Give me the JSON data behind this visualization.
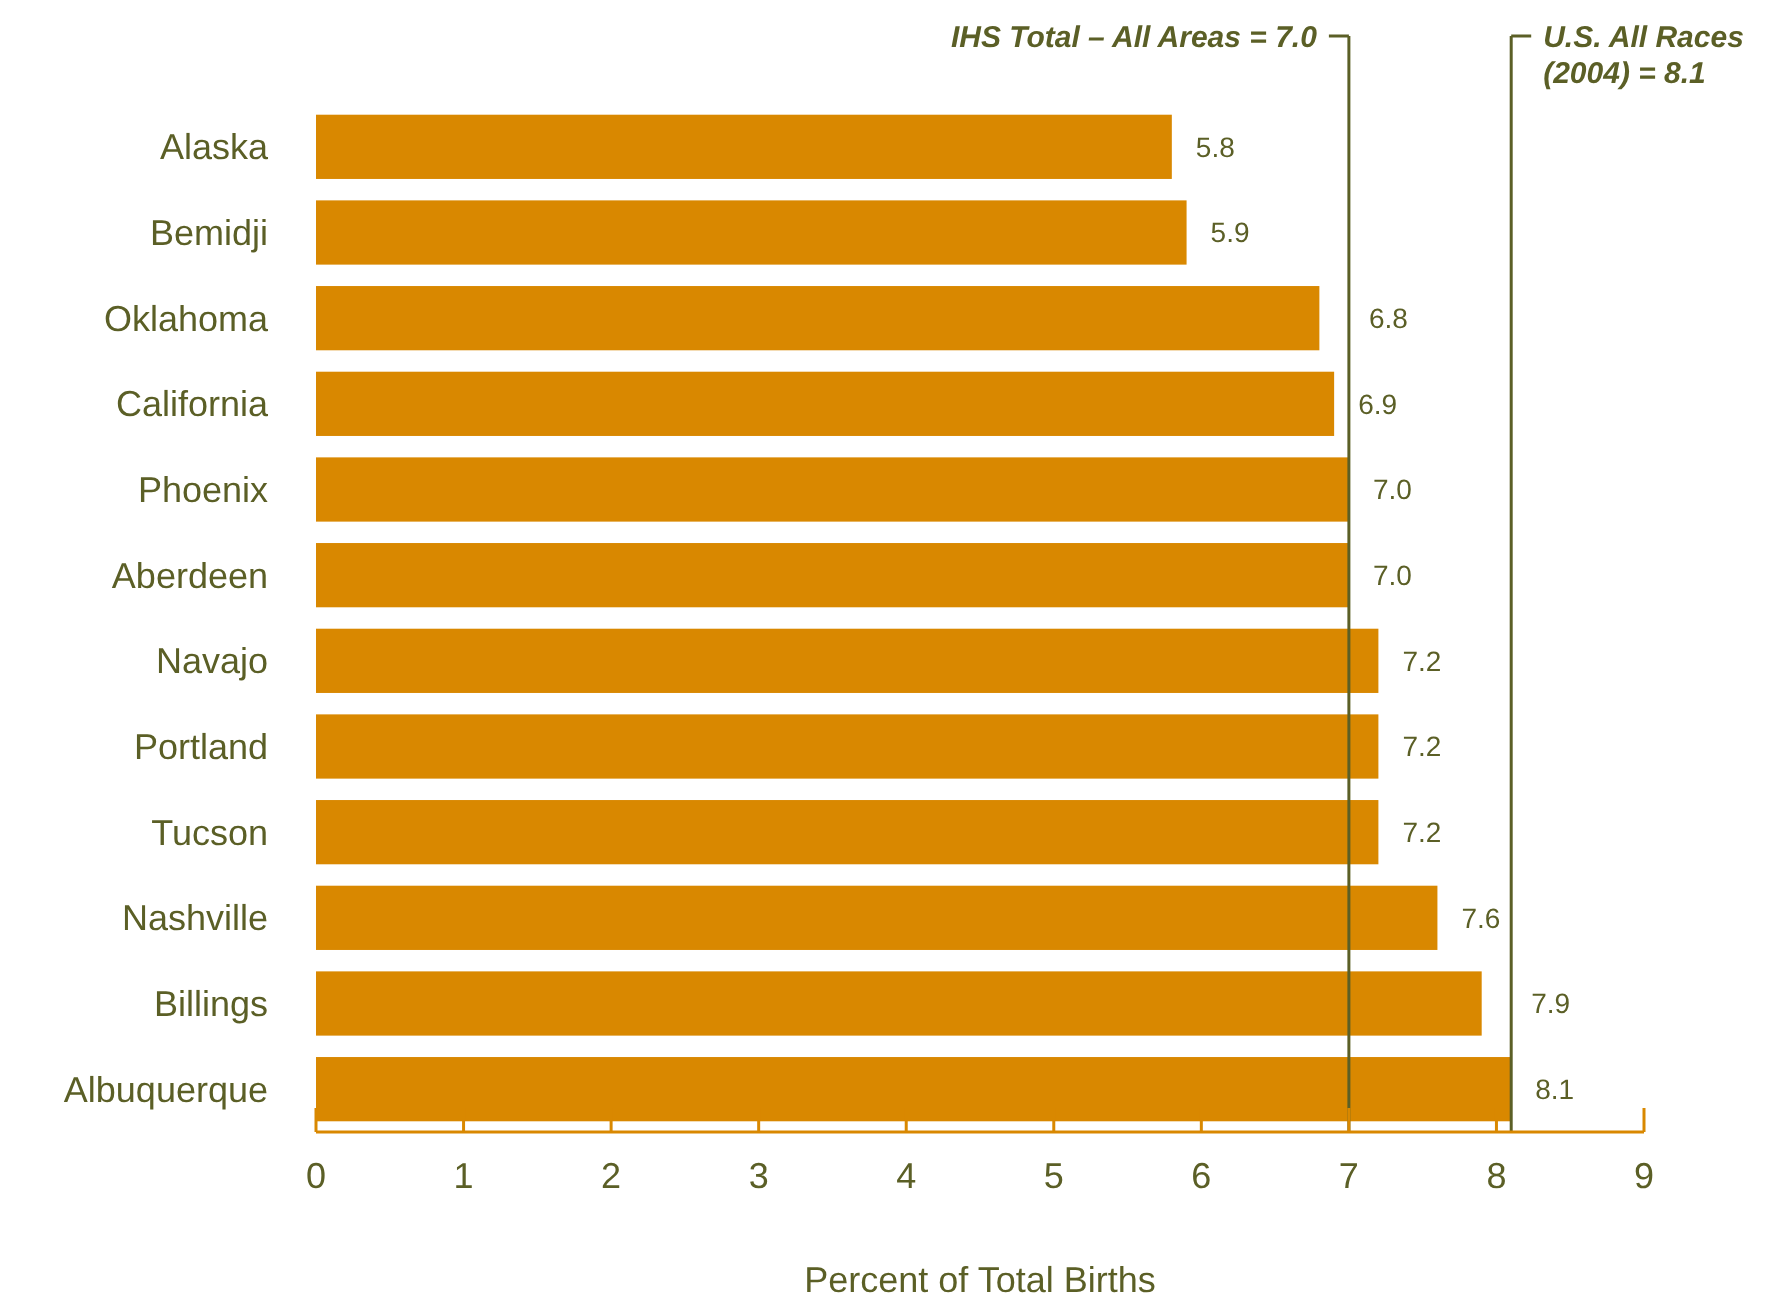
{
  "chart_data": {
    "type": "bar",
    "orientation": "horizontal",
    "categories": [
      "Alaska",
      "Bemidji",
      "Oklahoma",
      "California",
      "Phoenix",
      "Aberdeen",
      "Navajo",
      "Portland",
      "Tucson",
      "Nashville",
      "Billings",
      "Albuquerque"
    ],
    "values": [
      5.8,
      5.9,
      6.8,
      6.9,
      7.0,
      7.0,
      7.2,
      7.2,
      7.2,
      7.6,
      7.9,
      8.1
    ],
    "value_labels": [
      "5.8",
      "5.9",
      "6.8",
      "6.9",
      "7.0",
      "7.0",
      "7.2",
      "7.2",
      "7.2",
      "7.6",
      "7.9",
      "8.1"
    ],
    "color": "#d98800",
    "xlim": [
      0,
      9
    ],
    "xticks": [
      0,
      1,
      2,
      3,
      4,
      5,
      6,
      7,
      8,
      9
    ],
    "xlabel": "Percent of Total Births",
    "ref_lines": [
      {
        "axis": "x",
        "value": 7.0,
        "label": "IHS Total – All Areas = 7.0",
        "color": "#5b5f26"
      },
      {
        "axis": "x",
        "value": 8.1,
        "label": "U.S. All Races\n(2004) = 8.1",
        "color": "#5b5f26"
      }
    ]
  }
}
